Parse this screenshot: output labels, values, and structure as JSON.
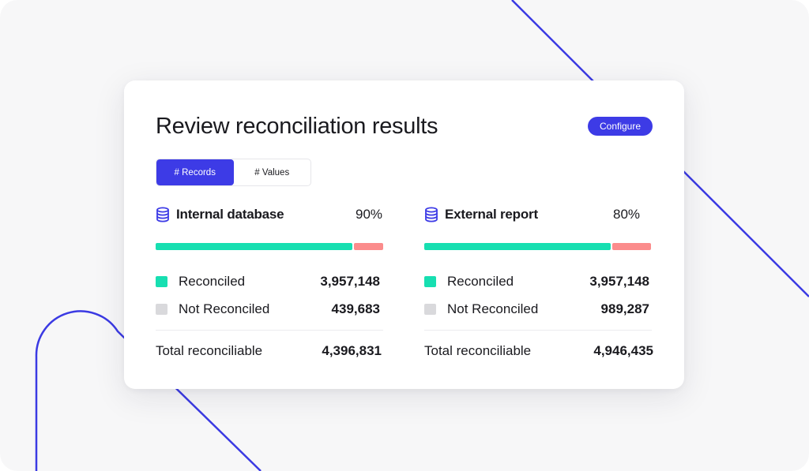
{
  "header": {
    "title": "Review reconciliation results",
    "configure_label": "Configure"
  },
  "toggle": {
    "records_label": "# Records",
    "values_label": "# Values",
    "active": "records"
  },
  "colors": {
    "accent": "#3d3be6",
    "reconciled": "#17dfb1",
    "not_reconciled": "#fb8c8c",
    "legend_not_reconciled": "#d9d9dc"
  },
  "panels": [
    {
      "icon": "database-icon",
      "name": "Internal database",
      "percent": "90%",
      "reconciled_fraction": 0.9,
      "reconciled_label": "Reconciled",
      "reconciled_value": "3,957,148",
      "not_reconciled_label": "Not Reconciled",
      "not_reconciled_value": "439,683",
      "total_label": "Total reconciliable",
      "total_value": "4,396,831"
    },
    {
      "icon": "database-icon",
      "name": "External report",
      "percent": "80%",
      "reconciled_fraction": 0.8,
      "reconciled_label": "Reconciled",
      "reconciled_value": "3,957,148",
      "not_reconciled_label": "Not Reconciled",
      "not_reconciled_value": "989,287",
      "total_label": "Total reconciliable",
      "total_value": "4,946,435"
    }
  ]
}
